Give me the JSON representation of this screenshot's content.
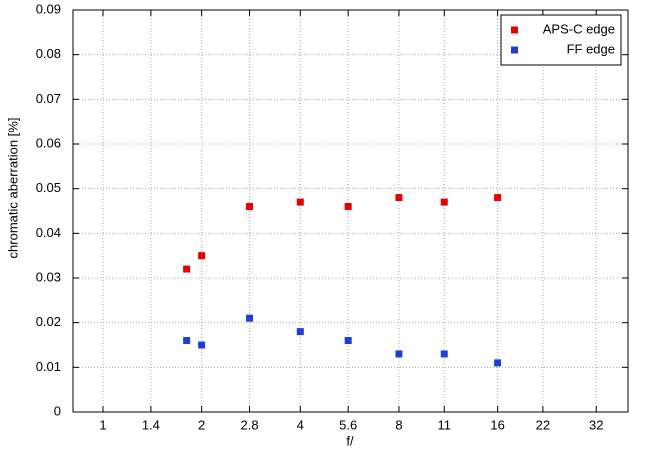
{
  "chart_data": {
    "type": "scatter",
    "xlabel": "f/",
    "ylabel": "chromatic aberration [%]",
    "x": [
      1.8,
      2,
      2.8,
      4,
      5.6,
      8,
      11,
      16
    ],
    "series": [
      {
        "name": "APS-C edge",
        "color": "#e80000",
        "values": [
          0.032,
          0.035,
          0.046,
          0.047,
          0.046,
          0.048,
          0.047,
          0.048
        ]
      },
      {
        "name": "FF edge",
        "color": "#1c3fd8",
        "values": [
          0.016,
          0.015,
          0.021,
          0.018,
          0.016,
          0.013,
          0.013,
          0.011
        ]
      }
    ],
    "xlim": [
      0.81,
      40
    ],
    "xticks": [
      1,
      1.4,
      2,
      2.8,
      4,
      5.6,
      8,
      11,
      16,
      22,
      32
    ],
    "xlog": true,
    "ylim": [
      0,
      0.09
    ],
    "yticks": [
      0,
      0.01,
      0.02,
      0.03,
      0.04,
      0.05,
      0.06,
      0.07,
      0.08,
      0.09
    ],
    "grid": true,
    "legend": "upper right"
  }
}
